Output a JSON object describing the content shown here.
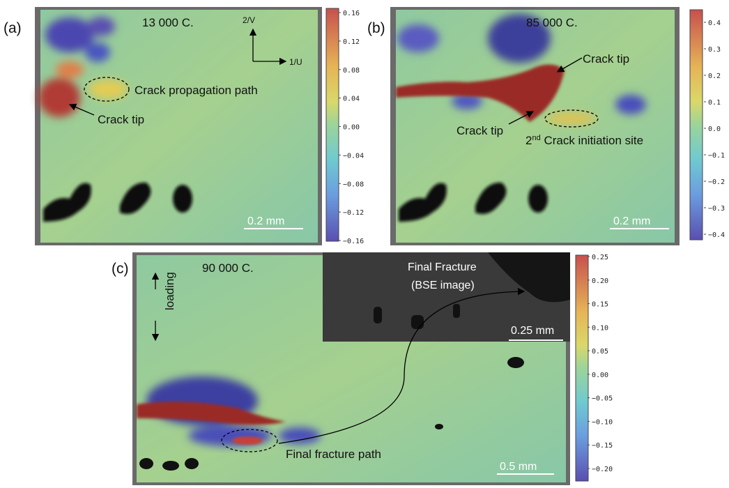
{
  "panels": [
    {
      "label": "(a)",
      "cycles": "13 000 C.",
      "axis_v": "2/V",
      "axis_u": "1/U",
      "annotations": [
        "Crack propagation path",
        "Crack tip"
      ],
      "scale": "0.2 mm",
      "colorbar": [
        "0.16",
        "0.12",
        "0.08",
        "0.04",
        "0.00",
        "−0.04",
        "−0.08",
        "−0.12",
        "−0.16"
      ]
    },
    {
      "label": "(b)",
      "cycles": "85 000 C.",
      "annotations": [
        "Crack tip",
        "Crack tip"
      ],
      "site": {
        "sup_base": "2",
        "sup": "nd",
        "text": " Crack initiation site"
      },
      "scale": "0.2 mm",
      "colorbar": [
        "0.4",
        "0.3",
        "0.2",
        "0.1",
        "0.0",
        "−0.1",
        "−0.2",
        "−0.3",
        "−0.4"
      ]
    },
    {
      "label": "(c)",
      "cycles": "90 000 C.",
      "loading": "loading",
      "inset_title": "Final Fracture",
      "inset_subtitle": "(BSE image)",
      "inset_scale": "0.25 mm",
      "annotations": [
        "Final fracture path"
      ],
      "scale": "0.5 mm",
      "colorbar": [
        "0.25",
        "0.20",
        "0.15",
        "0.10",
        "0.05",
        "0.00",
        "−0.05",
        "−0.10",
        "−0.15",
        "−0.20"
      ]
    }
  ]
}
